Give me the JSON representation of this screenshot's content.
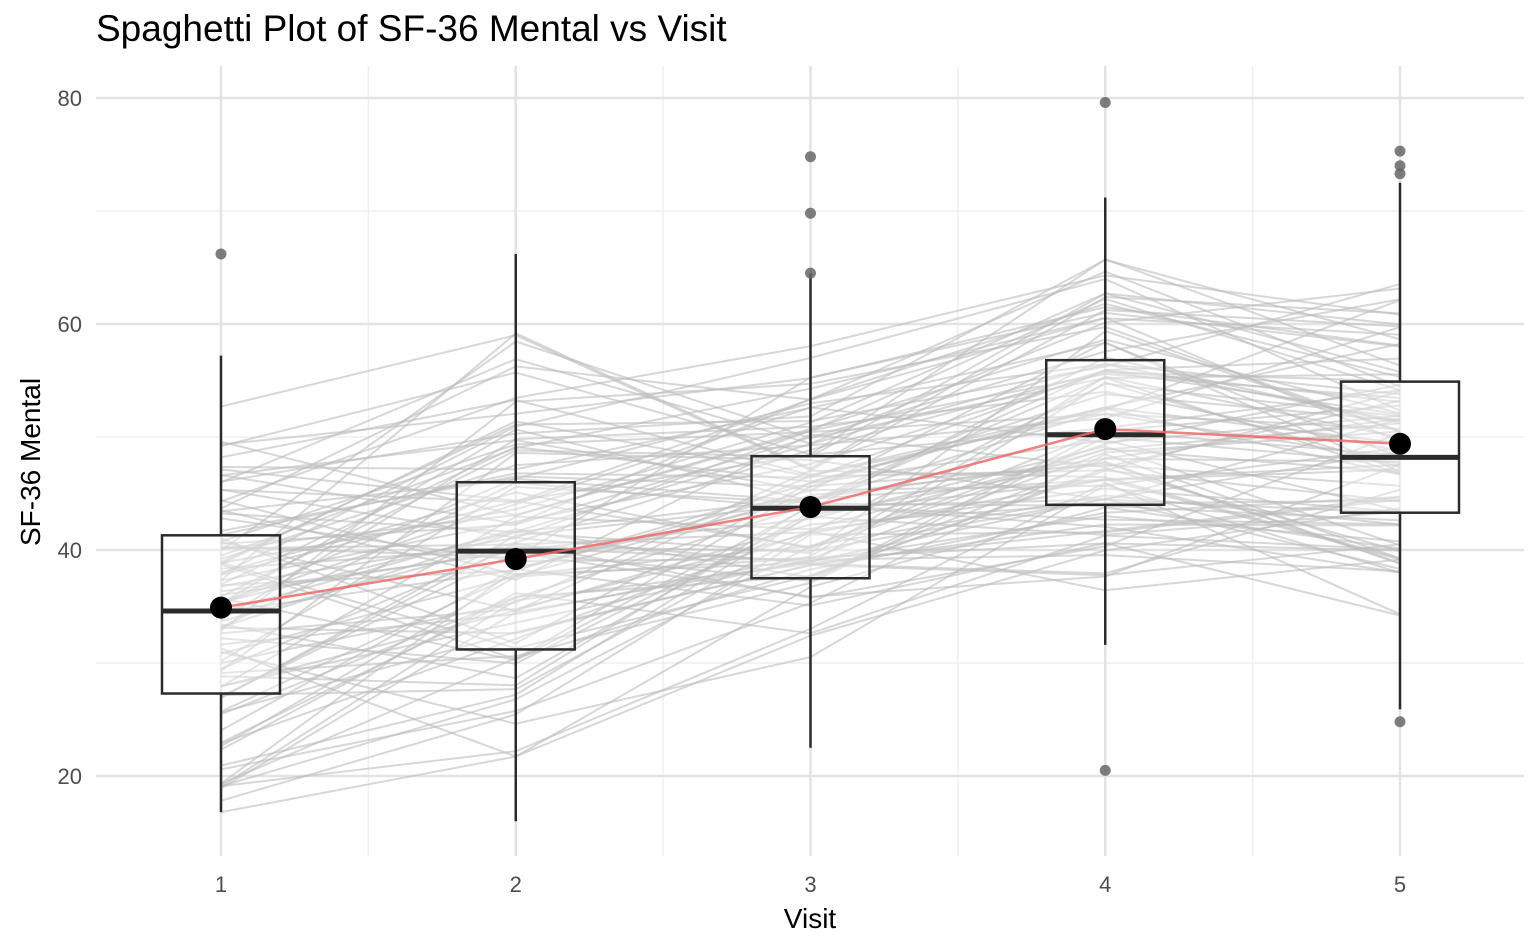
{
  "chart_data": {
    "type": "box",
    "title": "Spaghetti Plot of SF-36 Mental vs Visit",
    "xlabel": "Visit",
    "ylabel": "SF-36 Mental",
    "categories": [
      "1",
      "2",
      "3",
      "4",
      "5"
    ],
    "y_ticks": [
      20,
      40,
      60,
      80
    ],
    "ylim": [
      12.5,
      82.8
    ],
    "grid": true,
    "legend": "none",
    "boxes": [
      {
        "visit": 1,
        "q1": 27.3,
        "median": 34.6,
        "q3": 41.3,
        "whisker_low": 16.8,
        "whisker_high": 57.2,
        "outliers": [
          66.2
        ]
      },
      {
        "visit": 2,
        "q1": 31.2,
        "median": 39.9,
        "q3": 46.0,
        "whisker_low": 16.0,
        "whisker_high": 66.2,
        "outliers": []
      },
      {
        "visit": 3,
        "q1": 37.5,
        "median": 43.7,
        "q3": 48.3,
        "whisker_low": 22.5,
        "whisker_high": 64.5,
        "outliers": [
          64.5,
          69.8,
          74.8
        ]
      },
      {
        "visit": 4,
        "q1": 44.0,
        "median": 50.2,
        "q3": 56.8,
        "whisker_low": 31.6,
        "whisker_high": 71.2,
        "outliers": [
          79.6,
          20.5
        ]
      },
      {
        "visit": 5,
        "q1": 43.3,
        "median": 48.2,
        "q3": 54.9,
        "whisker_low": 25.9,
        "whisker_high": 72.5,
        "outliers": [
          75.3,
          74.0,
          73.3,
          24.8
        ]
      }
    ],
    "means": [
      34.9,
      39.2,
      43.8,
      50.7,
      49.4
    ],
    "mean_line_color": "#ee6a6a",
    "mean_point_color": "#000000",
    "spaghetti_color": "#bdbdbd",
    "box_color": "#2b2b2b",
    "outlier_color": "#666666",
    "subject_count": 100,
    "subjects_note": "individual subject trajectories (thin gray lines) connecting each subject's value across visits 1-5"
  }
}
